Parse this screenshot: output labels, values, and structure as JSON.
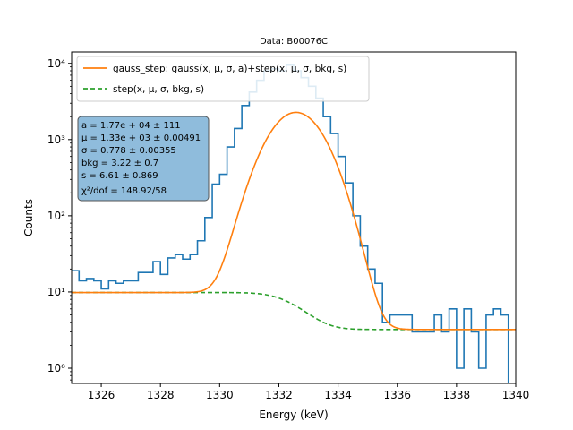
{
  "chart_data": {
    "type": "line",
    "title": "Data: B00076C",
    "xlabel": "Energy (keV)",
    "ylabel": "Counts",
    "xlim": [
      1325,
      1340
    ],
    "ylim_log10": [
      -0.2,
      4.15
    ],
    "y_scale": "log",
    "grid": false,
    "legend_position": "top-left",
    "x_ticks": [
      1326,
      1328,
      1330,
      1332,
      1334,
      1336,
      1338,
      1340
    ],
    "x_tick_labels": [
      "1326",
      "1328",
      "1330",
      "1332",
      "1334",
      "1336",
      "1338",
      "1340"
    ],
    "y_ticks": [
      1,
      10,
      100,
      1000,
      10000
    ],
    "y_tick_labels": [
      "10⁰",
      "10¹",
      "10²",
      "10³",
      "10⁴"
    ],
    "series": [
      {
        "name": "gauss_step: gauss(x, μ, σ, a)+step(x, μ, σ, bkg, s)",
        "kind": "fit-solid",
        "color": "#ff7f0e"
      },
      {
        "name": "step(x, μ, σ, bkg, s)",
        "kind": "step-dashed",
        "color": "#2ca02c"
      },
      {
        "name": "data",
        "kind": "histogram",
        "color": "#1f77b4",
        "bin_edges": [
          1325.0,
          1325.25,
          1325.5,
          1325.75,
          1326.0,
          1326.25,
          1326.5,
          1326.75,
          1327.0,
          1327.25,
          1327.5,
          1327.75,
          1328.0,
          1328.25,
          1328.5,
          1328.75,
          1329.0,
          1329.25,
          1329.5,
          1329.75,
          1330.0,
          1330.25,
          1330.5,
          1330.75,
          1331.0,
          1331.25,
          1331.5,
          1331.75,
          1332.0,
          1332.25,
          1332.5,
          1332.75,
          1333.0,
          1333.25,
          1333.5,
          1333.75,
          1334.0,
          1334.25,
          1334.5,
          1334.75,
          1335.0,
          1335.25,
          1335.5,
          1335.75,
          1336.0,
          1336.25,
          1336.5,
          1336.75,
          1337.0,
          1337.25,
          1337.5,
          1337.75,
          1338.0,
          1338.25,
          1338.5,
          1338.75,
          1339.0,
          1339.25,
          1339.5,
          1339.75,
          1340.0
        ],
        "counts": [
          19,
          14,
          15,
          14,
          11,
          14,
          13,
          14,
          14,
          18,
          18,
          25,
          17,
          28,
          31,
          27,
          31,
          47,
          95,
          260,
          350,
          800,
          1400,
          2800,
          4200,
          6000,
          8000,
          8500,
          8000,
          9500,
          8000,
          6500,
          5000,
          3500,
          2000,
          1200,
          600,
          270,
          100,
          40,
          20,
          13,
          4,
          5,
          5,
          5,
          3,
          3,
          3,
          5,
          3,
          6,
          1,
          6,
          3,
          1,
          5,
          6,
          5,
          0.5
        ]
      }
    ],
    "stats": {
      "a": 17700,
      "a_err": 111,
      "mu": 1330,
      "mu_err": 0.00491,
      "sigma": 0.778,
      "sigma_err": 0.00355,
      "bkg": 3.22,
      "bkg_err": 0.7,
      "s": 6.61,
      "s_err": 0.869,
      "chi2_dof": "148.92/58"
    },
    "stats_lines": [
      "a = 1.77e + 04 ± 111",
      "μ = 1.33e + 03 ± 0.00491",
      "σ = 0.778 ± 0.00355",
      "bkg = 3.22 ± 0.7",
      "s = 6.61 ± 0.869",
      "χ²/dof = 148.92/58"
    ]
  }
}
